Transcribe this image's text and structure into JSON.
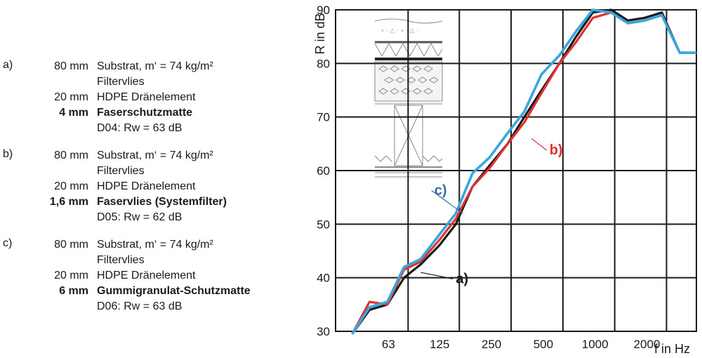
{
  "legend": {
    "entries": [
      {
        "key": "a)",
        "lines": [
          {
            "thickness": "80 mm",
            "text": "Substrat, m‘ = 74 kg/m²",
            "bold": false
          },
          {
            "thickness": "",
            "text": "Filtervlies",
            "bold": false
          },
          {
            "thickness": "20 mm",
            "text": "HDPE Dränelement",
            "bold": false
          },
          {
            "thickness": "4 mm",
            "text": "Faserschutzmatte",
            "bold": true
          },
          {
            "thickness": "",
            "text": "D04: Rw = 63 dB",
            "bold": false
          }
        ]
      },
      {
        "key": "b)",
        "lines": [
          {
            "thickness": "80 mm",
            "text": "Substrat, m‘ = 74 kg/m²",
            "bold": false
          },
          {
            "thickness": "",
            "text": "Filtervlies",
            "bold": false
          },
          {
            "thickness": "20 mm",
            "text": "HDPE Dränelement",
            "bold": false
          },
          {
            "thickness": "1,6 mm",
            "text": "Faservlies (Systemfilter)",
            "bold": true
          },
          {
            "thickness": "",
            "text": "D05: Rw = 62 dB",
            "bold": false
          }
        ]
      },
      {
        "key": "c)",
        "lines": [
          {
            "thickness": "80 mm",
            "text": "Substrat, m‘ = 74 kg/m²",
            "bold": false
          },
          {
            "thickness": "",
            "text": "Filtervlies",
            "bold": false
          },
          {
            "thickness": "20 mm",
            "text": "HDPE Dränelement",
            "bold": false
          },
          {
            "thickness": "6 mm",
            "text": "Gummigranulat-Schutzmatte",
            "bold": true
          },
          {
            "thickness": "",
            "text": "D06: Rw = 63 dB",
            "bold": false
          }
        ]
      }
    ]
  },
  "chart_data": {
    "type": "line",
    "title": "",
    "xlabel": "f in Hz",
    "ylabel": "R in dB",
    "x_scale": "log",
    "ylim": [
      30,
      90
    ],
    "yticks": [
      30,
      40,
      50,
      60,
      70,
      80,
      90
    ],
    "x_tick_labels": [
      "63",
      "125",
      "250",
      "500",
      "1000",
      "2000"
    ],
    "grid": true,
    "x": [
      50,
      63,
      80,
      100,
      125,
      160,
      200,
      250,
      315,
      400,
      500,
      630,
      800,
      1000,
      1250,
      1600,
      2000,
      2500,
      3150,
      4000,
      5000
    ],
    "series": [
      {
        "name": "a)",
        "color": "#1a1a1a",
        "values": [
          29.5,
          34,
          35,
          40,
          42.5,
          46,
          50,
          57,
          61,
          65,
          70,
          75,
          80,
          85,
          89.5,
          90,
          88,
          88.5,
          89.5,
          82,
          82
        ]
      },
      {
        "name": "b)",
        "color": "#e03030",
        "values": [
          29.5,
          35.5,
          35,
          41.5,
          43,
          47,
          51,
          57,
          60.5,
          65,
          69,
          74.5,
          80,
          84,
          88.5,
          89.5,
          87.5,
          88,
          89,
          82,
          82
        ]
      },
      {
        "name": "c)",
        "color": "#3aa6e0",
        "values": [
          29.5,
          34.5,
          35.5,
          42,
          43.5,
          48,
          52,
          59.5,
          62.5,
          67,
          71,
          78,
          81.5,
          86,
          90,
          89.5,
          87.5,
          88,
          89,
          82,
          82
        ]
      }
    ],
    "annotations": [
      {
        "text": "a)",
        "color": "#1a1a1a",
        "x": 200,
        "y": 39,
        "anchor_x": 125,
        "anchor_y": 41
      },
      {
        "text": "b)",
        "color": "#e03030",
        "x": 700,
        "y": 63,
        "anchor_x": 550,
        "anchor_y": 66
      },
      {
        "text": "c)",
        "color": "#3a6aa8",
        "x": 150,
        "y": 55.5,
        "anchor_x": 220,
        "anchor_y": 52
      }
    ]
  }
}
